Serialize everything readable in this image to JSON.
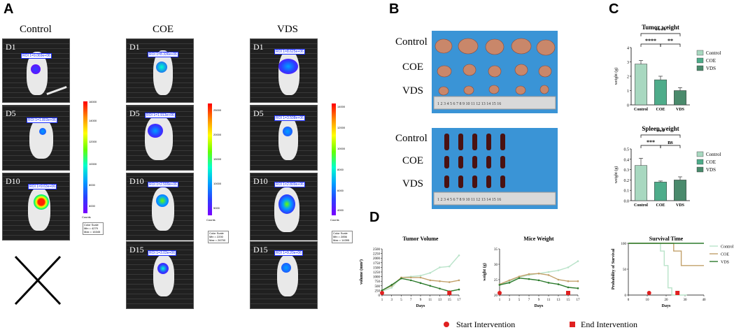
{
  "panels": {
    "A": "A",
    "B": "B",
    "C": "C",
    "D": "D"
  },
  "panelA": {
    "columns": [
      "Control",
      "COE",
      "VDS"
    ],
    "days": [
      "D1",
      "D5",
      "D10",
      "D15"
    ],
    "roi": {
      "control": [
        "ROI 1=9.069e+06",
        "ROI 1=1.803e+06",
        "ROI 1=9.63e+06"
      ],
      "coe": [
        "ROI 1=8.336e+06",
        "ROI 1=1.913e+06",
        "ROI 1=2.599e+06",
        "ROI 1=3.03e+06"
      ],
      "vds": [
        "ROI 1=8.625e+06",
        "ROI 1=3.508e+06",
        "ROI 1=2.809e+06",
        "ROI 1=9.20e+06"
      ]
    },
    "colorbars": {
      "control": {
        "ticks": [
          "16000",
          "14000",
          "12000",
          "10000",
          "8000",
          "6000"
        ],
        "unit": "Counts",
        "scale": [
          "Color Scale",
          "Min = 4279",
          "Max = 16345"
        ]
      },
      "coe": {
        "ticks": [
          "25000",
          "20000",
          "15000",
          "10000",
          "5000"
        ],
        "unit": "Counts",
        "scale": [
          "Color Scale",
          "Min = 2200",
          "Max = 26700"
        ]
      },
      "vds": {
        "ticks": [
          "14000",
          "12000",
          "10000",
          "8000",
          "6000",
          "4000"
        ],
        "unit": "Counts",
        "scale": [
          "Color Scale",
          "Min = 2856",
          "Max = 14395"
        ]
      }
    }
  },
  "panelB": {
    "tumor_rows": [
      "Control",
      "COE",
      "VDS"
    ],
    "spleen_rows": [
      "Control",
      "COE",
      "VDS"
    ],
    "ruler": "1 2 3 4 5 6 7 8 9 10 11 12 13 14 15 16"
  },
  "chart_data": [
    {
      "type": "bar",
      "title": "Tumor weight",
      "categories": [
        "Control",
        "COE",
        "VDS"
      ],
      "values": [
        2.85,
        1.75,
        1.0
      ],
      "errors": [
        0.25,
        0.25,
        0.2
      ],
      "ylabel": "weight (g)",
      "ylim": [
        0,
        4
      ],
      "yticks": [
        "0",
        "1",
        "2",
        "3",
        "4"
      ],
      "significance": [
        "****",
        "****",
        "**"
      ],
      "legend": [
        "Control",
        "COE",
        "VDS"
      ],
      "colors": [
        "#a8d8c0",
        "#4eac8a",
        "#4a8a6c"
      ]
    },
    {
      "type": "bar",
      "title": "Spleen weight",
      "categories": [
        "Control",
        "COE",
        "VDS"
      ],
      "values": [
        0.34,
        0.18,
        0.2
      ],
      "errors": [
        0.07,
        0.01,
        0.03
      ],
      "ylabel": "weight (g)",
      "ylim": [
        0,
        0.5
      ],
      "yticks": [
        "0.0",
        "0.1",
        "0.2",
        "0.3",
        "0.4",
        "0.5"
      ],
      "significance": [
        "***",
        "***",
        "ns"
      ],
      "legend": [
        "Control",
        "COE",
        "VDS"
      ],
      "colors": [
        "#a8d8c0",
        "#4eac8a",
        "#4a8a6c"
      ]
    },
    {
      "type": "line",
      "title": "Tumor Volume",
      "xlabel": "Days",
      "ylabel": "volume (mm³)",
      "x": [
        1,
        3,
        5,
        7,
        9,
        11,
        13,
        15,
        17
      ],
      "xticks": [
        "1",
        "3",
        "5",
        "7",
        "9",
        "11",
        "13",
        "15",
        "17"
      ],
      "ylim": [
        0,
        2500
      ],
      "yticks": [
        "0",
        "250",
        "500",
        "750",
        "1000",
        "1250",
        "1500",
        "1750",
        "2000",
        "2250",
        "2500"
      ],
      "series": [
        {
          "name": "Control",
          "values": [
            200,
            400,
            950,
            1000,
            1050,
            1200,
            1500,
            1550,
            2150
          ],
          "color": "#b9e3c9"
        },
        {
          "name": "COE",
          "values": [
            250,
            500,
            950,
            950,
            950,
            800,
            750,
            700,
            800
          ],
          "color": "#c2a06a"
        },
        {
          "name": "VDS",
          "values": [
            250,
            550,
            900,
            800,
            650,
            500,
            350,
            200,
            300
          ],
          "color": "#2c7a2c"
        }
      ]
    },
    {
      "type": "line",
      "title": "Mice Weight",
      "xlabel": "Days",
      "ylabel": "weight (g)",
      "x": [
        1,
        3,
        5,
        7,
        9,
        11,
        13,
        15,
        17
      ],
      "xticks": [
        "1",
        "3",
        "5",
        "7",
        "9",
        "11",
        "13",
        "15",
        "17"
      ],
      "ylim": [
        20,
        35
      ],
      "yticks": [
        "20",
        "25",
        "30",
        "35"
      ],
      "series": [
        {
          "name": "Control",
          "values": [
            23.2,
            24.5,
            25.8,
            26.5,
            27.0,
            27.5,
            28.0,
            29.0,
            31.0
          ],
          "color": "#b9e3c9"
        },
        {
          "name": "COE",
          "values": [
            23.5,
            24.8,
            26.0,
            26.8,
            27.0,
            26.5,
            25.0,
            24.5,
            24.5
          ],
          "color": "#c2a06a"
        },
        {
          "name": "VDS",
          "values": [
            23.3,
            24.0,
            25.5,
            25.2,
            24.8,
            24.0,
            23.5,
            22.5,
            22.2
          ],
          "color": "#2c7a2c"
        }
      ]
    },
    {
      "type": "line",
      "title": "Survival Time",
      "xlabel": "Days",
      "ylabel": "Probability of Survival",
      "xlim": [
        0,
        40
      ],
      "xticks": [
        "0",
        "10",
        "20",
        "30",
        "40"
      ],
      "ylim": [
        0,
        100
      ],
      "yticks": [
        "0",
        "50",
        "100"
      ],
      "series": [
        {
          "name": "Control",
          "x": [
            0,
            17,
            17,
            19,
            19,
            21,
            21,
            23,
            23,
            31
          ],
          "values": [
            100,
            100,
            85,
            85,
            57,
            57,
            14,
            14,
            0,
            0
          ],
          "color": "#b9e3c9"
        },
        {
          "name": "COE",
          "x": [
            0,
            24,
            24,
            28,
            28,
            40
          ],
          "values": [
            100,
            100,
            85,
            85,
            57,
            57
          ],
          "color": "#c2a06a"
        },
        {
          "name": "VDS",
          "x": [
            0,
            40
          ],
          "values": [
            100,
            100
          ],
          "color": "#2c7a2c"
        }
      ]
    }
  ],
  "intervention_legend": {
    "start": "Start Intervention",
    "end": "End Intervention"
  }
}
